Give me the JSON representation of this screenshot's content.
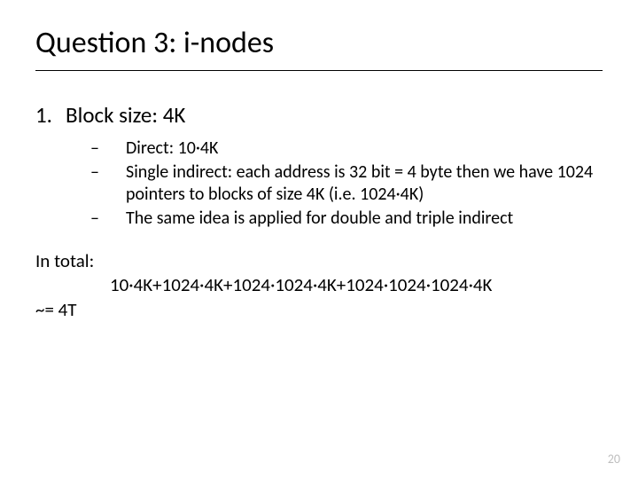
{
  "title": "Question 3: i-nodes",
  "list": {
    "number": "1.",
    "heading": "Block size: 4K",
    "items": [
      {
        "dash": "–",
        "text": "Direct: 10·4K"
      },
      {
        "dash": "–",
        "text": "Single indirect: each address is 32 bit = 4 byte then we have 1024 pointers to blocks of size 4K (i.e. 1024·4K)"
      },
      {
        "dash": "–",
        "text": "The same idea is applied for double and triple indirect"
      }
    ]
  },
  "total": {
    "label": "In total:",
    "calc": "10·4K+1024·4K+1024·1024·4K+1024·1024·1024·4K",
    "approx": "~= 4T"
  },
  "page_number": "20",
  "colors": {
    "background": "#ffffff",
    "text": "#000000",
    "pagenum": "#bfbfbf",
    "rule": "#000000"
  },
  "fonts": {
    "title_size_pt": 34,
    "level1_size_pt": 25,
    "level2_size_pt": 20,
    "para_size_pt": 21,
    "pagenum_size_pt": 14
  }
}
